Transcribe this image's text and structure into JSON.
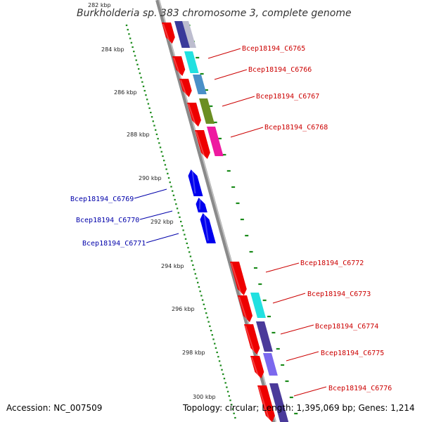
{
  "title": "Burkholderia sp. 383 chromosome 3, complete genome",
  "scale_labels": [
    "282 kbp",
    "284 kbp",
    "286 kbp",
    "288 kbp",
    "290 kbp",
    "292 kbp",
    "294 kbp",
    "296 kbp",
    "298 kbp",
    "300 kbp"
  ],
  "genes_forward": [
    {
      "label": "Bcep18194_C6765"
    },
    {
      "label": "Bcep18194_C6766"
    },
    {
      "label": "Bcep18194_C6767"
    },
    {
      "label": "Bcep18194_C6768"
    },
    {
      "label": "Bcep18194_C6772"
    },
    {
      "label": "Bcep18194_C6773"
    },
    {
      "label": "Bcep18194_C6774"
    },
    {
      "label": "Bcep18194_C6775"
    },
    {
      "label": "Bcep18194_C6776"
    }
  ],
  "genes_reverse": [
    {
      "label": "Bcep18194_C6769"
    },
    {
      "label": "Bcep18194_C6770"
    },
    {
      "label": "Bcep18194_C6771"
    }
  ],
  "colors": {
    "forward_label": "#cc0000",
    "reverse_label": "#0000aa",
    "forward_gene": "#ee0000",
    "reverse_gene": "#0000ee",
    "backbone": "#8a8a8a",
    "tick": "#1a8a1a"
  },
  "footer": {
    "accession": "Accession: NC_007509",
    "stats": "Topology: circular; Length: 1,395,069 bp; Genes: 1,214"
  }
}
